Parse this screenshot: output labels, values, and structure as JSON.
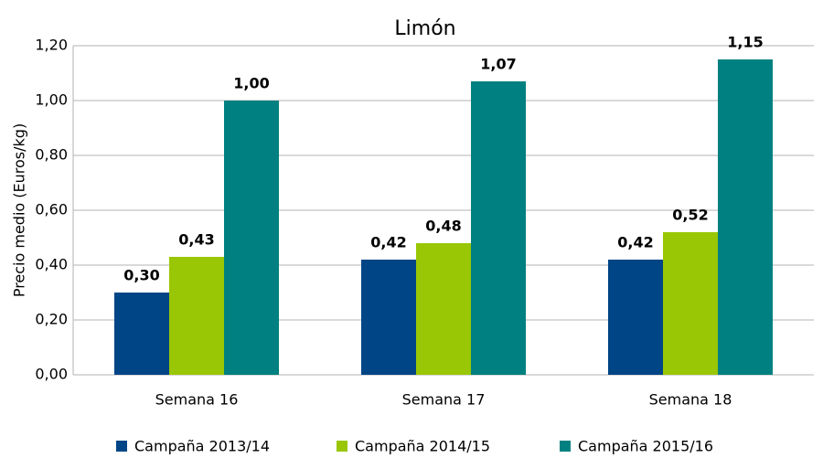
{
  "chart_data": {
    "type": "bar",
    "title": "Limón",
    "y_label": "Precio medio (Euros/kg)",
    "categories": [
      "Semana 16",
      "Semana 17",
      "Semana 18"
    ],
    "series": [
      {
        "name": "Campaña 2013/14",
        "color": "#004586",
        "values": [
          0.3,
          0.42,
          0.42
        ],
        "value_labels": [
          "0,30",
          "0,42",
          "0,42"
        ]
      },
      {
        "name": "Campaña 2014/15",
        "color": "#99c705",
        "values": [
          0.43,
          0.48,
          0.52
        ],
        "value_labels": [
          "0,43",
          "0,48",
          "0,52"
        ]
      },
      {
        "name": "Campaña 2015/16",
        "color": "#008080",
        "values": [
          1.0,
          1.07,
          1.15
        ],
        "value_labels": [
          "1,00",
          "1,07",
          "1,15"
        ]
      }
    ],
    "ylim": [
      0,
      1.2
    ],
    "yticks": [
      {
        "value": 0,
        "label": "0,00"
      },
      {
        "value": 0.2,
        "label": "0,20"
      },
      {
        "value": 0.4,
        "label": "0,40"
      },
      {
        "value": 0.6,
        "label": "0,60"
      },
      {
        "value": 0.8,
        "label": "0,80"
      },
      {
        "value": 1.0,
        "label": "1,00"
      },
      {
        "value": 1.2,
        "label": "1,20"
      }
    ],
    "grid": true,
    "legend": "bottom"
  }
}
